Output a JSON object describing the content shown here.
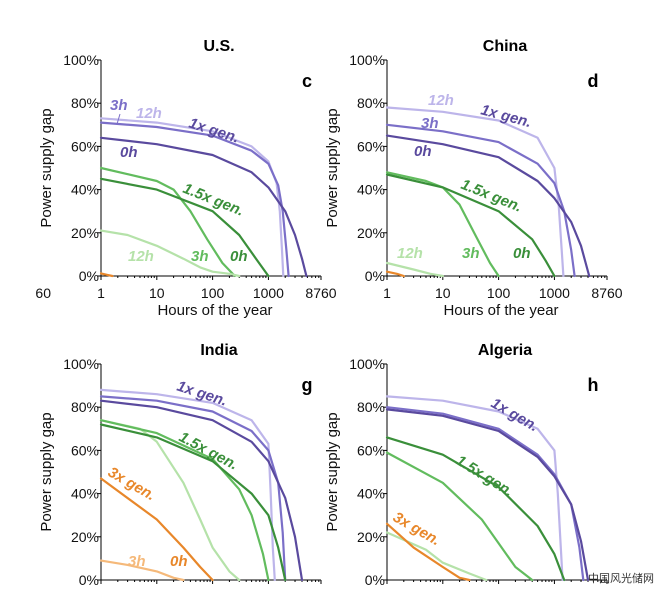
{
  "colors": {
    "purple_dark": "#5a4a9e",
    "purple_mid": "#7b6fc8",
    "purple_light": "#bdb5ea",
    "green_dark": "#3a8f3a",
    "green_mid": "#62bc5e",
    "green_light": "#b5e2a9",
    "orange_dark": "#e8872a",
    "orange_light": "#f5b97a"
  },
  "watermark": "中国风光储网",
  "partial_tick": "60",
  "chart_data": [
    {
      "type": "line",
      "title": "U.S.",
      "panel_label": "c",
      "xlabel": "Hours of the year",
      "ylabel": "Power supply gap",
      "xscale": "log",
      "xlim": [
        1,
        8760
      ],
      "ylim": [
        0,
        100
      ],
      "xticks": [
        "1",
        "10",
        "100",
        "1000",
        "8760"
      ],
      "yticks": [
        "0%",
        "20%",
        "40%",
        "60%",
        "80%",
        "100%"
      ],
      "series": [
        {
          "name": "1x gen. 12h",
          "color": "purple_light",
          "x": [
            1,
            10,
            100,
            500,
            1000,
            1400,
            1600,
            1750,
            1850
          ],
          "y": [
            73,
            71,
            67,
            60,
            53,
            43,
            30,
            12,
            0
          ]
        },
        {
          "name": "1x gen. 3h",
          "color": "purple_mid",
          "x": [
            1,
            10,
            100,
            500,
            1000,
            1500,
            1800,
            2100,
            2300
          ],
          "y": [
            71,
            69,
            65,
            58,
            52,
            42,
            30,
            12,
            0
          ]
        },
        {
          "name": "1x gen. 0h",
          "color": "purple_dark",
          "x": [
            1,
            10,
            100,
            500,
            1000,
            2000,
            3000,
            4000,
            4800
          ],
          "y": [
            64,
            61,
            56,
            48,
            41,
            30,
            19,
            8,
            0
          ]
        },
        {
          "name": "1.5x gen. 3h",
          "color": "green_mid",
          "x": [
            1,
            10,
            20,
            40,
            80,
            150,
            250
          ],
          "y": [
            50,
            44,
            40,
            30,
            17,
            6,
            0
          ]
        },
        {
          "name": "1.5x gen. 0h",
          "color": "green_dark",
          "x": [
            1,
            10,
            100,
            300,
            600,
            1000
          ],
          "y": [
            45,
            40,
            30,
            19,
            8,
            0
          ]
        },
        {
          "name": "1.5x gen. 12h",
          "color": "green_light",
          "x": [
            1,
            3,
            10,
            30,
            60,
            100,
            200,
            300
          ],
          "y": [
            21,
            19,
            14,
            8,
            4,
            2,
            1,
            0
          ]
        },
        {
          "name": "3x gen.",
          "color": "orange_dark",
          "x": [
            1,
            1.3,
            1.6
          ],
          "y": [
            1.2,
            0.5,
            0
          ]
        }
      ],
      "annotations": [
        {
          "text": "3h",
          "color": "purple_mid"
        },
        {
          "text": "12h",
          "color": "purple_light"
        },
        {
          "text": "1x gen.",
          "color": "purple_dark"
        },
        {
          "text": "0h",
          "color": "purple_dark"
        },
        {
          "text": "1.5x gen.",
          "color": "green_dark"
        },
        {
          "text": "12h",
          "color": "green_light"
        },
        {
          "text": "3h",
          "color": "green_mid"
        },
        {
          "text": "0h",
          "color": "green_dark"
        }
      ]
    },
    {
      "type": "line",
      "title": "China",
      "panel_label": "d",
      "xlabel": "Hours of the year",
      "ylabel": "Power supply gap",
      "xscale": "log",
      "xlim": [
        1,
        8760
      ],
      "ylim": [
        0,
        100
      ],
      "xticks": [
        "1",
        "10",
        "100",
        "1000",
        "8760"
      ],
      "yticks": [
        "0%",
        "20%",
        "40%",
        "60%",
        "80%",
        "100%"
      ],
      "series": [
        {
          "name": "1x gen. 12h",
          "color": "purple_light",
          "x": [
            1,
            10,
            100,
            500,
            1000,
            1200,
            1350,
            1450
          ],
          "y": [
            78,
            76,
            72,
            64,
            50,
            32,
            12,
            0
          ]
        },
        {
          "name": "1x gen. 3h",
          "color": "purple_mid",
          "x": [
            1,
            10,
            100,
            500,
            1000,
            1500,
            2000,
            2300
          ],
          "y": [
            70,
            67,
            62,
            52,
            43,
            30,
            12,
            0
          ]
        },
        {
          "name": "1x gen. 0h",
          "color": "purple_dark",
          "x": [
            1,
            10,
            100,
            500,
            1000,
            2000,
            3000,
            4200
          ],
          "y": [
            65,
            61,
            55,
            44,
            36,
            25,
            14,
            0
          ]
        },
        {
          "name": "1.5x gen. 3h",
          "color": "green_mid",
          "x": [
            1,
            5,
            10,
            20,
            40,
            70,
            100
          ],
          "y": [
            48,
            44,
            41,
            33,
            18,
            6,
            0
          ]
        },
        {
          "name": "1.5x gen. 0h",
          "color": "green_dark",
          "x": [
            1,
            10,
            100,
            400,
            700,
            1000
          ],
          "y": [
            47,
            41,
            30,
            17,
            7,
            0
          ]
        },
        {
          "name": "1.5x gen. 12h",
          "color": "green_light",
          "x": [
            1,
            3,
            6,
            10
          ],
          "y": [
            6,
            3,
            1,
            0
          ]
        },
        {
          "name": "3x gen.",
          "color": "orange_dark",
          "x": [
            1,
            1.5,
            2
          ],
          "y": [
            2,
            1,
            0
          ]
        }
      ],
      "annotations": [
        {
          "text": "12h",
          "color": "purple_light"
        },
        {
          "text": "1x gen.",
          "color": "purple_dark"
        },
        {
          "text": "3h",
          "color": "purple_mid"
        },
        {
          "text": "0h",
          "color": "purple_dark"
        },
        {
          "text": "1.5x gen.",
          "color": "green_dark"
        },
        {
          "text": "12h",
          "color": "green_light"
        },
        {
          "text": "3h",
          "color": "green_mid"
        },
        {
          "text": "0h",
          "color": "green_dark"
        }
      ]
    },
    {
      "type": "line",
      "title": "India",
      "panel_label": "g",
      "ylabel": "Power supply gap",
      "xscale": "log",
      "xlim": [
        1,
        8760
      ],
      "ylim": [
        0,
        100
      ],
      "yticks": [
        "0%",
        "20%",
        "40%",
        "60%",
        "80%",
        "100%"
      ],
      "series": [
        {
          "name": "1x gen. 12h",
          "color": "purple_light",
          "x": [
            1,
            10,
            100,
            500,
            1000,
            1100,
            1200,
            1300
          ],
          "y": [
            88,
            86,
            82,
            74,
            63,
            40,
            15,
            0
          ]
        },
        {
          "name": "1x gen. 3h",
          "color": "purple_mid",
          "x": [
            1,
            10,
            100,
            500,
            1000,
            1500,
            1800,
            2000
          ],
          "y": [
            85,
            83,
            78,
            69,
            60,
            45,
            22,
            0
          ]
        },
        {
          "name": "1x gen. 0h",
          "color": "purple_dark",
          "x": [
            1,
            10,
            100,
            500,
            1000,
            2000,
            3000,
            4000
          ],
          "y": [
            83,
            80,
            74,
            64,
            55,
            38,
            20,
            0
          ]
        },
        {
          "name": "1.5x gen. 12h",
          "color": "green_light",
          "x": [
            1,
            5,
            10,
            30,
            60,
            100,
            200,
            300
          ],
          "y": [
            74,
            70,
            64,
            45,
            28,
            15,
            4,
            0
          ]
        },
        {
          "name": "1.5x gen. 3h",
          "color": "green_mid",
          "x": [
            1,
            10,
            100,
            300,
            500,
            800,
            1000
          ],
          "y": [
            74,
            68,
            56,
            42,
            30,
            12,
            0
          ]
        },
        {
          "name": "1.5x gen. 0h",
          "color": "green_dark",
          "x": [
            1,
            10,
            100,
            500,
            1000,
            1500,
            2000
          ],
          "y": [
            72,
            66,
            55,
            40,
            30,
            15,
            0
          ]
        },
        {
          "name": "3x gen. 0h",
          "color": "orange_dark",
          "x": [
            1,
            10,
            30,
            60,
            100
          ],
          "y": [
            47,
            28,
            15,
            6,
            0
          ]
        },
        {
          "name": "3x gen. 3h",
          "color": "orange_light",
          "x": [
            1,
            3,
            10,
            20,
            30
          ],
          "y": [
            9,
            7,
            4,
            1,
            0
          ]
        }
      ],
      "annotations": [
        {
          "text": "1x gen.",
          "color": "purple_dark"
        },
        {
          "text": "1.5x gen.",
          "color": "green_dark"
        },
        {
          "text": "3x gen.",
          "color": "orange_dark"
        },
        {
          "text": "3h",
          "color": "orange_light"
        },
        {
          "text": "0h",
          "color": "orange_dark"
        }
      ]
    },
    {
      "type": "line",
      "title": "Algeria",
      "panel_label": "h",
      "ylabel": "Power supply gap",
      "xscale": "log",
      "xlim": [
        1,
        8760
      ],
      "ylim": [
        0,
        100
      ],
      "yticks": [
        "0%",
        "20%",
        "40%",
        "60%",
        "80%",
        "100%"
      ],
      "series": [
        {
          "name": "1x gen. 12h",
          "color": "purple_light",
          "x": [
            1,
            10,
            100,
            500,
            1000,
            1150,
            1300,
            1400
          ],
          "y": [
            85,
            83,
            78,
            70,
            60,
            40,
            15,
            0
          ]
        },
        {
          "name": "1x gen. 3h",
          "color": "purple_mid",
          "x": [
            1,
            10,
            100,
            500,
            1000,
            2000,
            2800,
            3300
          ],
          "y": [
            80,
            77,
            70,
            58,
            49,
            35,
            15,
            0
          ]
        },
        {
          "name": "1x gen. 0h",
          "color": "purple_dark",
          "x": [
            1,
            10,
            100,
            500,
            1000,
            2000,
            3000,
            4000
          ],
          "y": [
            79,
            76,
            69,
            57,
            48,
            35,
            18,
            0
          ]
        },
        {
          "name": "1.5x gen. 0h",
          "color": "green_dark",
          "x": [
            1,
            10,
            100,
            500,
            1000,
            1500
          ],
          "y": [
            66,
            58,
            43,
            25,
            12,
            0
          ]
        },
        {
          "name": "1.5x gen. 3h",
          "color": "green_mid",
          "x": [
            1,
            10,
            50,
            100,
            200,
            400
          ],
          "y": [
            59,
            45,
            28,
            17,
            6,
            0
          ]
        },
        {
          "name": "1.5x gen. 12h",
          "color": "green_light",
          "x": [
            1,
            5,
            10,
            30,
            60
          ],
          "y": [
            22,
            14,
            8,
            3,
            0
          ]
        },
        {
          "name": "3x gen.",
          "color": "orange_dark",
          "x": [
            1,
            3,
            10,
            20,
            30
          ],
          "y": [
            26,
            15,
            6,
            1,
            0
          ]
        }
      ],
      "annotations": [
        {
          "text": "1x gen.",
          "color": "purple_dark"
        },
        {
          "text": "1.5x gen.",
          "color": "green_dark"
        },
        {
          "text": "3x gen.",
          "color": "orange_dark"
        }
      ]
    }
  ]
}
